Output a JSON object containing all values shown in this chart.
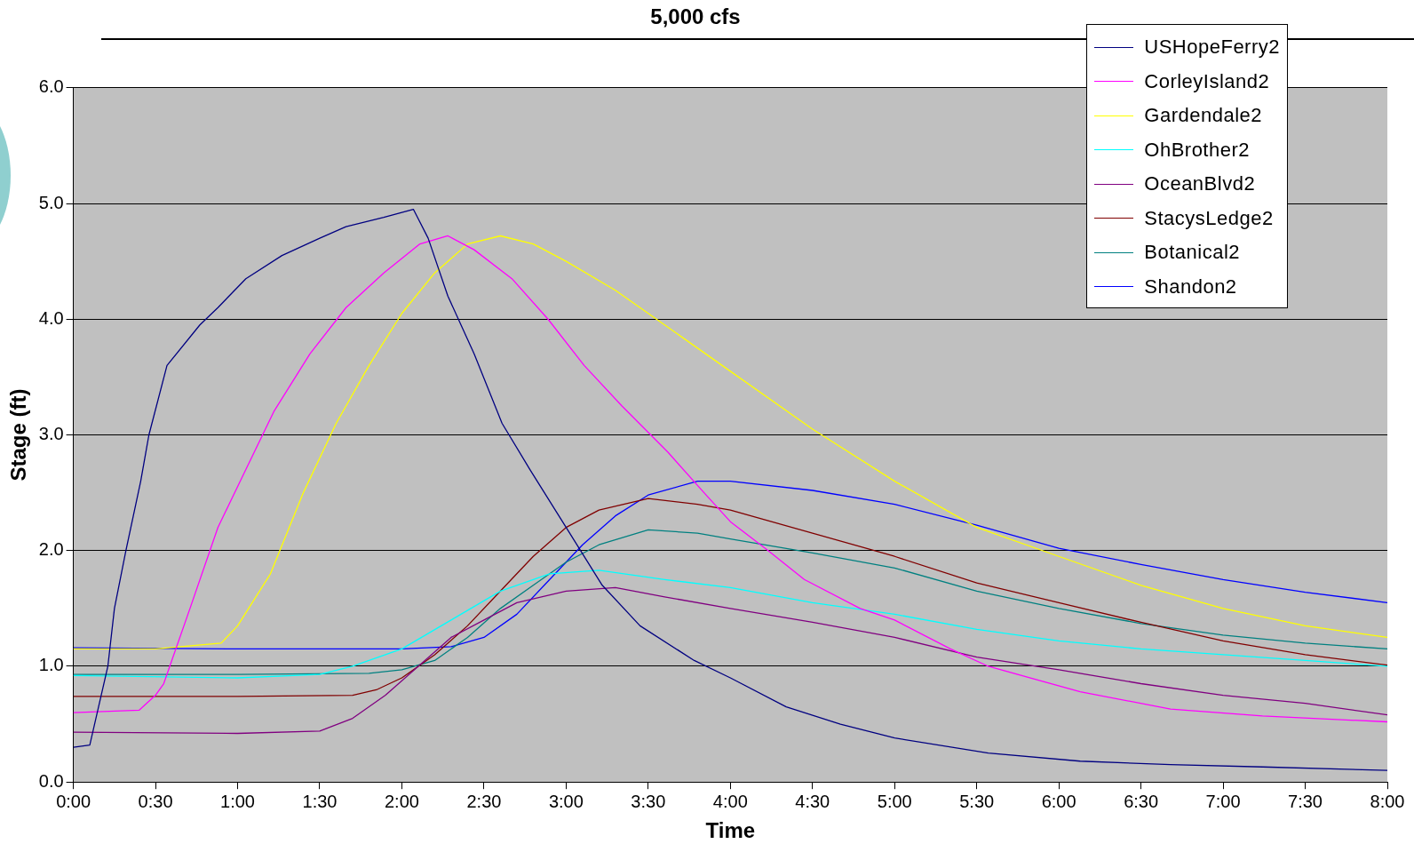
{
  "chart_data": {
    "type": "line",
    "title": "5,000 cfs",
    "xlabel": "Time",
    "ylabel": "Stage (ft)",
    "xlim": [
      0,
      8
    ],
    "xticks": [
      {
        "value": 0,
        "label": "0:00"
      },
      {
        "value": 0.5,
        "label": "0:30"
      },
      {
        "value": 1,
        "label": "1:00"
      },
      {
        "value": 1.5,
        "label": "1:30"
      },
      {
        "value": 2,
        "label": "2:00"
      },
      {
        "value": 2.5,
        "label": "2:30"
      },
      {
        "value": 3,
        "label": "3:00"
      },
      {
        "value": 3.5,
        "label": "3:30"
      },
      {
        "value": 4,
        "label": "4:00"
      },
      {
        "value": 4.5,
        "label": "4:30"
      },
      {
        "value": 5,
        "label": "5:00"
      },
      {
        "value": 5.5,
        "label": "5:30"
      },
      {
        "value": 6,
        "label": "6:00"
      },
      {
        "value": 6.5,
        "label": "6:30"
      },
      {
        "value": 7,
        "label": "7:00"
      },
      {
        "value": 7.5,
        "label": "7:30"
      },
      {
        "value": 8,
        "label": "8:00"
      }
    ],
    "ylim": [
      0,
      6
    ],
    "yticks": [
      {
        "value": 0,
        "label": "0.0"
      },
      {
        "value": 1,
        "label": "1.0"
      },
      {
        "value": 2,
        "label": "2.0"
      },
      {
        "value": 3,
        "label": "3.0"
      },
      {
        "value": 4,
        "label": "4.0"
      },
      {
        "value": 5,
        "label": "5.0"
      },
      {
        "value": 6,
        "label": "6.0"
      }
    ],
    "grid": "y",
    "legend": "top right",
    "marker": "none",
    "line_style": "solid",
    "series": [
      {
        "name": "USHopeFerry2",
        "color": "#000080",
        "x": [
          0,
          0.1,
          0.21,
          0.25,
          0.32,
          0.41,
          0.46,
          0.57,
          0.77,
          0.88,
          1.05,
          1.27,
          1.5,
          1.66,
          1.89,
          2.07,
          2.16,
          2.28,
          2.44,
          2.61,
          2.78,
          3,
          3.22,
          3.45,
          3.78,
          4,
          4.34,
          4.67,
          5,
          5.57,
          6.13,
          6.68,
          7.24,
          8
        ],
        "values": [
          0.3,
          0.32,
          1,
          1.5,
          2,
          2.6,
          3,
          3.6,
          3.95,
          4.1,
          4.35,
          4.55,
          4.7,
          4.8,
          4.88,
          4.95,
          4.7,
          4.2,
          3.7,
          3.1,
          2.7,
          2.2,
          1.7,
          1.35,
          1.05,
          0.9,
          0.65,
          0.5,
          0.38,
          0.25,
          0.18,
          0.15,
          0.13,
          0.1
        ]
      },
      {
        "name": "CorleyIsland2",
        "color": "#ff00ff",
        "x": [
          0,
          0.4,
          0.5,
          0.55,
          0.71,
          0.88,
          1.05,
          1.22,
          1.44,
          1.66,
          1.89,
          2.11,
          2.28,
          2.44,
          2.67,
          2.89,
          3.11,
          3.34,
          3.62,
          3.84,
          4,
          4.23,
          4.45,
          4.79,
          5,
          5.34,
          5.57,
          6.13,
          6.68,
          7.24,
          8
        ],
        "values": [
          0.6,
          0.62,
          0.75,
          0.85,
          1.5,
          2.2,
          2.7,
          3.2,
          3.7,
          4.1,
          4.4,
          4.65,
          4.72,
          4.6,
          4.35,
          4,
          3.6,
          3.25,
          2.85,
          2.5,
          2.25,
          2,
          1.75,
          1.5,
          1.4,
          1.15,
          1,
          0.78,
          0.63,
          0.57,
          0.52
        ]
      },
      {
        "name": "Gardendale2",
        "color": "#ffff00",
        "x": [
          0,
          0.5,
          0.9,
          1,
          1.2,
          1.4,
          1.6,
          1.8,
          2,
          2.2,
          2.4,
          2.6,
          2.8,
          3,
          3.3,
          3.6,
          4,
          4.5,
          5,
          5.5,
          6,
          6.5,
          7,
          7.5,
          8
        ],
        "values": [
          1.15,
          1.15,
          1.2,
          1.35,
          1.8,
          2.5,
          3.1,
          3.6,
          4.05,
          4.4,
          4.65,
          4.72,
          4.65,
          4.5,
          4.25,
          3.95,
          3.55,
          3.05,
          2.6,
          2.2,
          1.95,
          1.7,
          1.5,
          1.35,
          1.25
        ]
      },
      {
        "name": "OhBrother2",
        "color": "#00ffff",
        "x": [
          0,
          1,
          1.5,
          1.7,
          2,
          2.3,
          2.6,
          2.9,
          3.2,
          3.6,
          4,
          4.5,
          5,
          5.5,
          6,
          6.5,
          7,
          7.5,
          8
        ],
        "values": [
          0.92,
          0.9,
          0.93,
          1,
          1.15,
          1.4,
          1.65,
          1.8,
          1.83,
          1.75,
          1.68,
          1.55,
          1.45,
          1.32,
          1.22,
          1.15,
          1.1,
          1.05,
          1
        ]
      },
      {
        "name": "OceanBlvd2",
        "color": "#800080",
        "x": [
          0,
          1,
          1.5,
          1.7,
          1.9,
          2.1,
          2.3,
          2.5,
          2.7,
          3,
          3.3,
          3.6,
          4,
          4.5,
          5,
          5.5,
          6,
          6.5,
          7,
          7.5,
          8
        ],
        "values": [
          0.43,
          0.42,
          0.44,
          0.55,
          0.75,
          1,
          1.25,
          1.4,
          1.55,
          1.65,
          1.68,
          1.6,
          1.5,
          1.38,
          1.25,
          1.08,
          0.97,
          0.85,
          0.75,
          0.68,
          0.58
        ]
      },
      {
        "name": "StacysLedge2",
        "color": "#800000",
        "x": [
          0,
          1,
          1.7,
          1.85,
          2,
          2.2,
          2.4,
          2.6,
          2.8,
          3,
          3.2,
          3.5,
          3.8,
          4,
          4.5,
          5,
          5.5,
          6,
          6.5,
          7,
          7.5,
          8
        ],
        "values": [
          0.74,
          0.74,
          0.75,
          0.8,
          0.9,
          1.1,
          1.35,
          1.65,
          1.95,
          2.2,
          2.35,
          2.45,
          2.4,
          2.35,
          2.15,
          1.95,
          1.72,
          1.55,
          1.38,
          1.22,
          1.1,
          1.01
        ]
      },
      {
        "name": "Botanical2",
        "color": "#008080",
        "x": [
          0,
          1,
          1.8,
          2,
          2.2,
          2.4,
          2.6,
          2.8,
          3,
          3.2,
          3.5,
          3.8,
          4,
          4.5,
          5,
          5.5,
          6,
          6.5,
          7,
          7.5,
          8
        ],
        "values": [
          0.93,
          0.93,
          0.94,
          0.97,
          1.05,
          1.25,
          1.5,
          1.7,
          1.9,
          2.05,
          2.18,
          2.15,
          2.1,
          1.98,
          1.85,
          1.65,
          1.5,
          1.37,
          1.27,
          1.2,
          1.15
        ]
      },
      {
        "name": "Shandon2",
        "color": "#0000ff",
        "x": [
          0,
          1,
          2,
          2.3,
          2.5,
          2.7,
          2.9,
          3.1,
          3.3,
          3.5,
          3.8,
          4,
          4.5,
          5,
          5.5,
          6,
          6.5,
          7,
          7.5,
          8
        ],
        "values": [
          1.16,
          1.15,
          1.15,
          1.17,
          1.25,
          1.45,
          1.75,
          2.05,
          2.3,
          2.48,
          2.6,
          2.6,
          2.52,
          2.4,
          2.22,
          2.02,
          1.88,
          1.75,
          1.64,
          1.55
        ]
      }
    ]
  }
}
